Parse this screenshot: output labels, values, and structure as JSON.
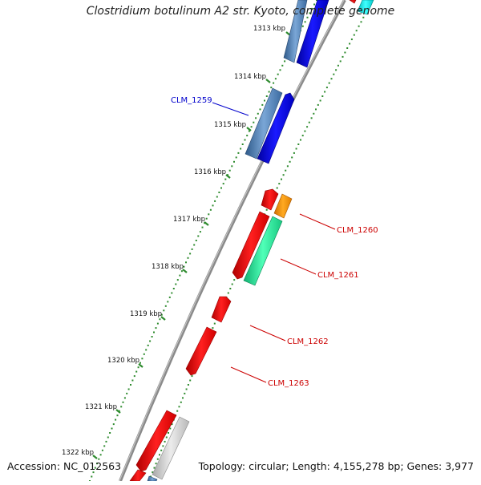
{
  "title": "Clostridium botulinum A2 str. Kyoto, complete genome",
  "accession_line": "Accession: NC_012563",
  "summary_line": "Topology: circular; Length: 4,155,278 bp; Genes: 3,977",
  "colors": {
    "backbone": "#8a8a8a",
    "tick_dots": "#2e8b2e",
    "label_blue": "#0000cc",
    "label_red": "#cc0000",
    "gene_red": "#ff0000",
    "gene_blue": "#0000ee",
    "gene_steel": "#4a7ab0",
    "gene_orange": "#ff9900",
    "gene_green": "#22e89a",
    "gene_grey": "#c8c8c8",
    "gene_cyan": "#00e0e0"
  },
  "kbp_ticks": [
    {
      "label": "1313 kbp"
    },
    {
      "label": "1314 kbp"
    },
    {
      "label": "1315 kbp"
    },
    {
      "label": "1316 kbp"
    },
    {
      "label": "1317 kbp"
    },
    {
      "label": "1318 kbp"
    },
    {
      "label": "1319 kbp"
    },
    {
      "label": "1320 kbp"
    },
    {
      "label": "1321 kbp"
    },
    {
      "label": "1322 kbp"
    }
  ],
  "gene_labels": [
    {
      "name": "CLM_1259",
      "color": "blue"
    },
    {
      "name": "CLM_1260",
      "color": "red"
    },
    {
      "name": "CLM_1261",
      "color": "red"
    },
    {
      "name": "CLM_1262",
      "color": "red"
    },
    {
      "name": "CLM_1263",
      "color": "red"
    }
  ]
}
